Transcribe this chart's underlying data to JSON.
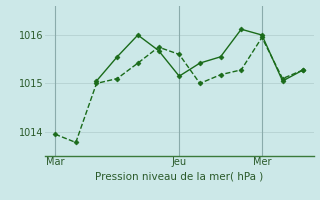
{
  "background_color": "#cce8e8",
  "grid_color": "#b8d4d4",
  "line_color": "#1a6b1a",
  "marker_color": "#1a6b1a",
  "xlabel": "Pression niveau de la mer( hPa )",
  "xlabel_fontsize": 7.5,
  "ylim": [
    1013.5,
    1016.6
  ],
  "yticks": [
    1014,
    1015,
    1016
  ],
  "xtick_labels": [
    "Mar",
    "Jeu",
    "Mer"
  ],
  "xtick_positions": [
    1,
    13,
    21
  ],
  "vline_positions": [
    1,
    13,
    21
  ],
  "xlim": [
    0,
    26
  ],
  "series1_x": [
    1,
    3,
    5,
    7,
    9,
    11,
    13,
    15,
    17,
    19,
    21,
    23,
    25
  ],
  "series1_y": [
    1013.95,
    1013.78,
    1015.0,
    1015.1,
    1015.42,
    1015.75,
    1015.6,
    1015.0,
    1015.18,
    1015.28,
    1015.95,
    1015.1,
    1015.28
  ],
  "series2_x": [
    5,
    7,
    9,
    11,
    13,
    15,
    17,
    19,
    21,
    23,
    25
  ],
  "series2_y": [
    1015.05,
    1015.55,
    1016.0,
    1015.68,
    1015.15,
    1015.42,
    1015.55,
    1016.12,
    1016.0,
    1015.05,
    1015.28
  ],
  "marker_size": 2.5,
  "line_width": 1.0,
  "figsize": [
    3.2,
    2.0
  ],
  "dpi": 100
}
